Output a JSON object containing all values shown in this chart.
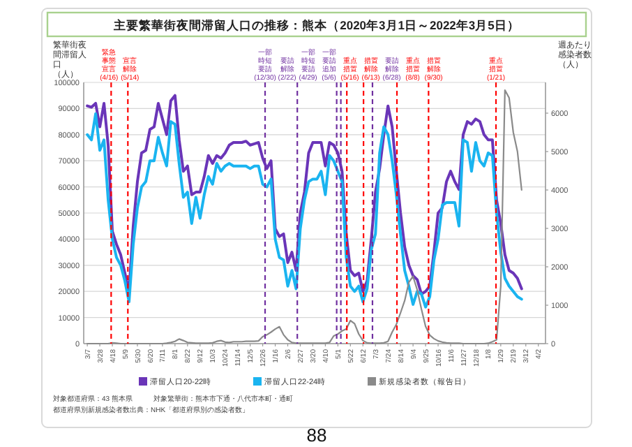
{
  "chart_data": {
    "type": "line",
    "title": "主要繁華街夜間滞留人口の推移：熊本（2020年3月1日～2022年3月5日）",
    "ylabel": "繁華街夜間滞留人口（人）",
    "y2label": "週あたり感染者数（人）",
    "x": [
      "2020-03-07",
      "2020-03-14",
      "2020-03-21",
      "2020-03-28",
      "2020-04-04",
      "2020-04-11",
      "2020-04-18",
      "2020-04-25",
      "2020-05-02",
      "2020-05-09",
      "2020-05-16",
      "2020-05-23",
      "2020-05-30",
      "2020-06-06",
      "2020-06-13",
      "2020-06-20",
      "2020-06-27",
      "2020-07-04",
      "2020-07-11",
      "2020-07-18",
      "2020-07-25",
      "2020-08-01",
      "2020-08-08",
      "2020-08-15",
      "2020-08-22",
      "2020-08-29",
      "2020-09-05",
      "2020-09-12",
      "2020-09-19",
      "2020-09-26",
      "2020-10-03",
      "2020-10-10",
      "2020-10-17",
      "2020-10-24",
      "2020-10-31",
      "2020-11-07",
      "2020-11-14",
      "2020-11-21",
      "2020-11-28",
      "2020-12-05",
      "2020-12-12",
      "2020-12-19",
      "2020-12-26",
      "2021-01-02",
      "2021-01-09",
      "2021-01-16",
      "2021-01-23",
      "2021-01-30",
      "2021-02-06",
      "2021-02-13",
      "2021-02-20",
      "2021-02-27",
      "2021-03-06",
      "2021-03-13",
      "2021-03-20",
      "2021-03-27",
      "2021-04-03",
      "2021-04-10",
      "2021-04-17",
      "2021-04-24",
      "2021-05-01",
      "2021-05-08",
      "2021-05-15",
      "2021-05-22",
      "2021-05-29",
      "2021-06-05",
      "2021-06-12",
      "2021-06-19",
      "2021-06-26",
      "2021-07-03",
      "2021-07-10",
      "2021-07-17",
      "2021-07-24",
      "2021-07-31",
      "2021-08-07",
      "2021-08-14",
      "2021-08-21",
      "2021-08-28",
      "2021-09-04",
      "2021-09-11",
      "2021-09-18",
      "2021-09-25",
      "2021-10-02",
      "2021-10-09",
      "2021-10-16",
      "2021-10-23",
      "2021-10-30",
      "2021-11-06",
      "2021-11-13",
      "2021-11-20",
      "2021-11-27",
      "2021-12-04",
      "2021-12-11",
      "2021-12-18",
      "2021-12-25",
      "2022-01-01",
      "2022-01-08",
      "2022-01-15",
      "2022-01-22",
      "2022-01-29",
      "2022-02-05",
      "2022-02-12",
      "2022-02-19",
      "2022-02-26",
      "2022-03-05"
    ],
    "series": [
      {
        "name": "滞留人口20-22時",
        "color": "#6a35b8",
        "values": [
          91000,
          90500,
          92000,
          83000,
          92000,
          76000,
          43000,
          38000,
          34000,
          27000,
          20000,
          45000,
          62000,
          73000,
          74000,
          82000,
          83000,
          92000,
          86000,
          80000,
          93000,
          95000,
          78000,
          66000,
          68000,
          57000,
          58000,
          58000,
          64000,
          72000,
          69000,
          72000,
          71000,
          73000,
          76000,
          77000,
          77000,
          77000,
          77500,
          76000,
          76500,
          77000,
          71000,
          67000,
          70000,
          44000,
          41000,
          42000,
          31000,
          35000,
          28000,
          50000,
          58000,
          73000,
          77000,
          77000,
          77000,
          68000,
          77000,
          76000,
          73000,
          66000,
          42000,
          28000,
          26000,
          27000,
          20000,
          24000,
          40000,
          58000,
          67000,
          80000,
          91000,
          83000,
          66000,
          50000,
          37000,
          30000,
          26000,
          24500,
          19000,
          20000,
          22000,
          35000,
          50000,
          52000,
          62000,
          66000,
          62000,
          59000,
          80000,
          85000,
          84000,
          86000,
          85000,
          80000,
          78000,
          78000,
          55000,
          46000,
          34000,
          28000,
          27000,
          25000,
          21000
        ]
      },
      {
        "name": "滞留人口22-24時",
        "color": "#1ab4f0",
        "values": [
          80000,
          78000,
          88000,
          74000,
          78000,
          55000,
          40000,
          33000,
          30000,
          24000,
          16000,
          38000,
          52000,
          60000,
          62000,
          70000,
          70000,
          79000,
          73000,
          68000,
          85000,
          84000,
          69000,
          56000,
          58000,
          46000,
          56000,
          48000,
          57000,
          64000,
          61000,
          69000,
          66000,
          68000,
          69000,
          68000,
          68000,
          68000,
          68000,
          67000,
          68000,
          68000,
          61000,
          60000,
          63000,
          40000,
          33000,
          32000,
          22000,
          28000,
          21000,
          44000,
          55000,
          62000,
          63000,
          63000,
          66000,
          57000,
          72000,
          70000,
          66000,
          62000,
          33000,
          22000,
          20000,
          22000,
          16000,
          21000,
          36000,
          42000,
          73000,
          83000,
          80000,
          70000,
          57000,
          42000,
          28000,
          22000,
          15000,
          20000,
          19000,
          14000,
          18000,
          32000,
          40000,
          53000,
          54000,
          54000,
          54000,
          45000,
          78000,
          77000,
          66000,
          77000,
          70000,
          68000,
          73000,
          72000,
          50000,
          35000,
          25000,
          22000,
          20000,
          18000,
          17000
        ]
      },
      {
        "name": "新規感染者数（報告日）",
        "color": "#8a8a8a",
        "axis": "y2",
        "values": [
          0,
          0,
          0,
          0,
          0,
          0,
          20,
          10,
          0,
          0,
          0,
          0,
          0,
          0,
          0,
          0,
          0,
          0,
          0,
          10,
          30,
          60,
          120,
          80,
          30,
          20,
          10,
          10,
          10,
          10,
          20,
          60,
          80,
          40,
          30,
          50,
          50,
          50,
          60,
          60,
          60,
          70,
          180,
          230,
          300,
          380,
          440,
          230,
          100,
          30,
          10,
          10,
          10,
          10,
          10,
          10,
          10,
          10,
          30,
          200,
          250,
          330,
          380,
          600,
          520,
          250,
          80,
          20,
          10,
          10,
          10,
          20,
          60,
          300,
          500,
          800,
          1120,
          1600,
          1750,
          1400,
          900,
          450,
          220,
          130,
          70,
          40,
          20,
          10,
          10,
          10,
          0,
          0,
          0,
          0,
          0,
          0,
          10,
          50,
          100,
          1500,
          6600,
          6400,
          5500,
          5000,
          4000
        ]
      }
    ],
    "xlim": [
      "2020-03-01",
      "2022-04-14"
    ],
    "xticks": [
      {
        "value": "2020-03-07",
        "label": "3/7"
      },
      {
        "value": "2020-03-28",
        "label": "3/28"
      },
      {
        "value": "2020-04-18",
        "label": "4/18"
      },
      {
        "value": "2020-05-09",
        "label": "5/9"
      },
      {
        "value": "2020-05-30",
        "label": "5/30"
      },
      {
        "value": "2020-06-20",
        "label": "6/20"
      },
      {
        "value": "2020-07-11",
        "label": "7/11"
      },
      {
        "value": "2020-08-01",
        "label": "8/1"
      },
      {
        "value": "2020-08-22",
        "label": "8/22"
      },
      {
        "value": "2020-09-12",
        "label": "9/12"
      },
      {
        "value": "2020-10-03",
        "label": "10/3"
      },
      {
        "value": "2020-10-24",
        "label": "10/24"
      },
      {
        "value": "2020-11-14",
        "label": "11/14"
      },
      {
        "value": "2020-12-05",
        "label": "12/5"
      },
      {
        "value": "2020-12-26",
        "label": "12/26"
      },
      {
        "value": "2021-01-16",
        "label": "1/16"
      },
      {
        "value": "2021-02-06",
        "label": "2/6"
      },
      {
        "value": "2021-02-27",
        "label": "2/27"
      },
      {
        "value": "2021-03-20",
        "label": "3/20"
      },
      {
        "value": "2021-04-10",
        "label": "4/10"
      },
      {
        "value": "2021-05-01",
        "label": "5/1"
      },
      {
        "value": "2021-05-22",
        "label": "5/22"
      },
      {
        "value": "2021-06-12",
        "label": "6/12"
      },
      {
        "value": "2021-07-03",
        "label": "7/3"
      },
      {
        "value": "2021-07-24",
        "label": "7/24"
      },
      {
        "value": "2021-08-14",
        "label": "8/14"
      },
      {
        "value": "2021-09-04",
        "label": "9/4"
      },
      {
        "value": "2021-09-25",
        "label": "9/25"
      },
      {
        "value": "2021-10-16",
        "label": "10/16"
      },
      {
        "value": "2021-11-06",
        "label": "11/6"
      },
      {
        "value": "2021-11-27",
        "label": "11/27"
      },
      {
        "value": "2021-12-18",
        "label": "12/18"
      },
      {
        "value": "2022-01-08",
        "label": "1/8"
      },
      {
        "value": "2022-01-29",
        "label": "1/29"
      },
      {
        "value": "2022-02-19",
        "label": "2/19"
      },
      {
        "value": "2022-03-12",
        "label": "3/12"
      },
      {
        "value": "2022-04-02",
        "label": "4/2"
      }
    ],
    "ylim": [
      0,
      100000
    ],
    "yticks": [
      0,
      10000,
      20000,
      30000,
      40000,
      50000,
      60000,
      70000,
      80000,
      90000,
      100000
    ],
    "y2lim": [
      0,
      6800
    ],
    "y2ticks": [
      0,
      1000,
      2000,
      3000,
      4000,
      5000,
      6000
    ],
    "grid": "y",
    "legend": "bottom",
    "ref_lines": [
      {
        "axis": "x",
        "value": "2020-04-16",
        "label": "緊急事態宣言(4/16)",
        "color": "#ff0000",
        "line_style": "dashed"
      },
      {
        "axis": "x",
        "value": "2020-05-14",
        "label": "宣言解除(5/14)",
        "color": "#ff0000",
        "line_style": "dashed"
      },
      {
        "axis": "x",
        "value": "2020-12-30",
        "label": "一部時短要請(12/30)",
        "color": "#7030a0",
        "line_style": "dashed"
      },
      {
        "axis": "x",
        "value": "2021-02-22",
        "label": "要請解除(2/22)",
        "color": "#7030a0",
        "line_style": "dashed"
      },
      {
        "axis": "x",
        "value": "2021-04-29",
        "label": "一部時短要請(4/29)",
        "color": "#7030a0",
        "line_style": "dashed"
      },
      {
        "axis": "x",
        "value": "2021-05-06",
        "label": "一部要請追加(5/6)",
        "color": "#7030a0",
        "line_style": "dashed"
      },
      {
        "axis": "x",
        "value": "2021-05-16",
        "label": "重点措置(5/16)",
        "color": "#ff0000",
        "line_style": "dashed"
      },
      {
        "axis": "x",
        "value": "2021-06-13",
        "label": "措置解除(6/13)",
        "color": "#ff0000",
        "line_style": "dashed"
      },
      {
        "axis": "x",
        "value": "2021-06-28",
        "label": "要請解除(6/28)",
        "color": "#7030a0",
        "line_style": "dashed"
      },
      {
        "axis": "x",
        "value": "2021-08-08",
        "label": "重点措置(8/8)",
        "color": "#ff0000",
        "line_style": "dashed"
      },
      {
        "axis": "x",
        "value": "2021-09-30",
        "label": "措置解除(9/30)",
        "color": "#ff0000",
        "line_style": "dashed"
      },
      {
        "axis": "x",
        "value": "2022-01-21",
        "label": "重点措置(1/21)",
        "color": "#ff0000",
        "line_style": "dashed"
      }
    ],
    "annotations": [
      "対象都道府県：43 熊本県",
      "対象繁華街：熊本市下通・八代市本町・通町",
      "都道府県別新規感染者数出典：NHK「都道府県別の感染者数」",
      "88"
    ]
  }
}
